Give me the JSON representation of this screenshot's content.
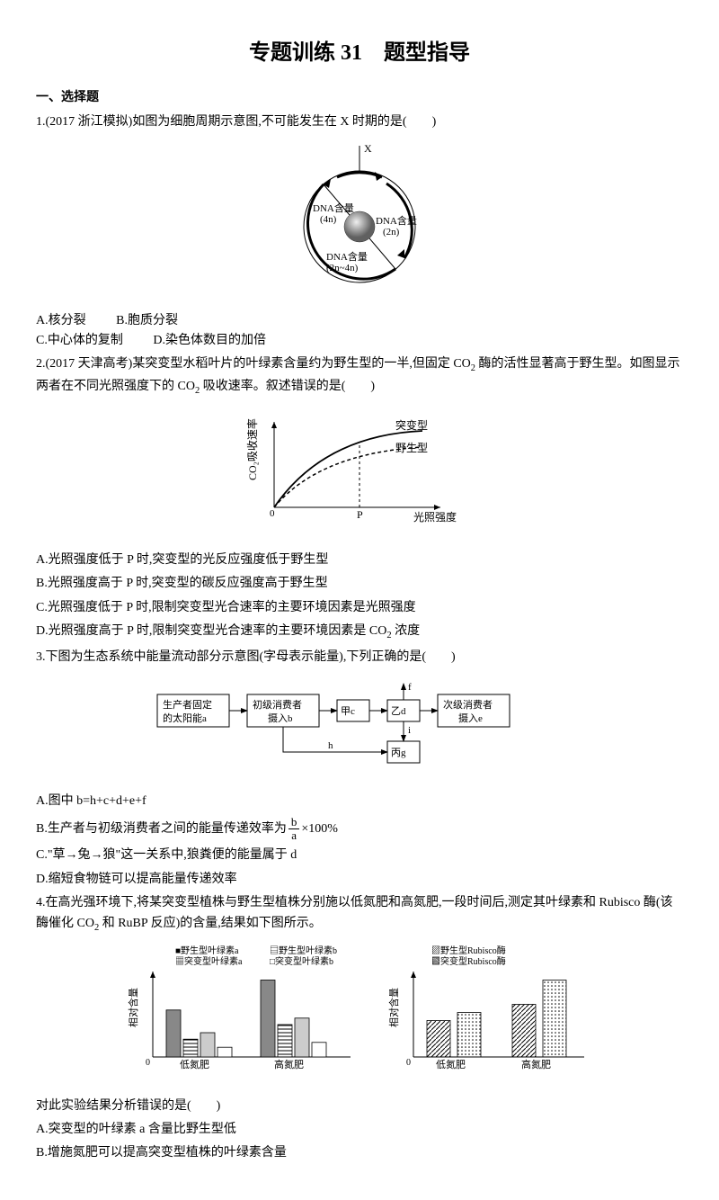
{
  "title": "专题训练 31　题型指导",
  "section1": "一、选择题",
  "q1": {
    "stem": "1.(2017 浙江模拟)如图为细胞周期示意图,不可能发生在 X 时期的是(　　)",
    "fig": {
      "x_label": "X",
      "ring_left": "DNA含量\n(4n)",
      "ring_bottom": "DNA含量\n(2n~4n)",
      "ring_right": "DNA含量\n(2n)",
      "stroke": "#000000",
      "fill_sphere_dark": "#7a7a7a",
      "fill_sphere_light": "#e8e8e8"
    },
    "optA": "A.核分裂",
    "optB": "B.胞质分裂",
    "optC": "C.中心体的复制",
    "optD": "D.染色体数目的加倍"
  },
  "q2": {
    "stem1": "2.(2017 天津高考)某突变型水稻叶片的叶绿素含量约为野生型的一半,但固定 CO",
    "stem_sub": "2",
    "stem2": " 酶的活性显著高于野生型。如图显示两者在不同光照强度下的 CO",
    "stem3": " 吸收速率。叙述错误的是(　　)",
    "fig": {
      "ylabel": "CO₂吸收速率",
      "xlabel": "光照强度",
      "tickP": "P",
      "tick0": "0",
      "series_mut": "突变型",
      "series_wt": "野生型",
      "color": "#000000",
      "mut_style": "solid",
      "wt_style": "dashed"
    },
    "optA": "A.光照强度低于 P 时,突变型的光反应强度低于野生型",
    "optB": "B.光照强度高于 P 时,突变型的碳反应强度高于野生型",
    "optC": "C.光照强度低于 P 时,限制突变型光合速率的主要环境因素是光照强度",
    "optD": "D.光照强度高于 P 时,限制突变型光合速率的主要环境因素是 CO",
    "optD_sub": "2",
    "optD_tail": " 浓度"
  },
  "q3": {
    "stem": "3.下图为生态系统中能量流动部分示意图(字母表示能量),下列正确的是(　　)",
    "fig": {
      "box1": "生产者固定\n的太阳能a",
      "box2": "初级消费者\n摄入b",
      "box3a": "甲",
      "box3b": "c",
      "box4a": "乙",
      "box4b": "d",
      "box5": "次级消费者\n摄入e",
      "box6a": "丙",
      "box6b": "g",
      "edge_h": "h",
      "edge_i": "i",
      "edge_f": "f",
      "stroke": "#000000"
    },
    "optA": "A.图中 b=h+c+d+e+f",
    "optB_pre": "B.生产者与初级消费者之间的能量传递效率为",
    "optB_frac_num": "b",
    "optB_frac_den": "a",
    "optB_tail": "×100%",
    "optC": "C.\"草→兔→狼\"这一关系中,狼粪便的能量属于 d",
    "optD": "D.缩短食物链可以提高能量传递效率"
  },
  "q4": {
    "stem1": "4.在高光强环境下,将某突变型植株与野生型植株分别施以低氮肥和高氮肥,一段时间后,测定其叶绿素和 Rubisco 酶(该酶催化 CO",
    "stem_sub": "2",
    "stem2": " 和 RuBP 反应)的含量,结果如下图所示。",
    "fig": {
      "ylabel": "相对含量",
      "tick0": "0",
      "xlow": "低氮肥",
      "xhigh": "高氮肥",
      "legA": "野生型叶绿素a",
      "legB": "野生型叶绿素b",
      "legC": "突变型叶绿素a",
      "legD": "突变型叶绿素b",
      "legE": "野生型Rubisco酶",
      "legF": "突变型Rubisco酶",
      "chart1": {
        "low": {
          "wt_a": 0.58,
          "wt_b": 0.22,
          "mut_a": 0.3,
          "mut_b": 0.12
        },
        "high": {
          "wt_a": 0.95,
          "wt_b": 0.4,
          "mut_a": 0.48,
          "mut_b": 0.18
        }
      },
      "chart2": {
        "low": {
          "wt": 0.45,
          "mut": 0.55
        },
        "high": {
          "wt": 0.65,
          "mut": 0.95
        }
      },
      "fill_wta": "#888888",
      "fill_wtb": "pattern-horiz",
      "fill_muta": "#cccccc",
      "fill_mutb": "#ffffff",
      "fill_wtR": "pattern-diag1",
      "fill_mutR": "pattern-dots"
    },
    "concl": "对此实验结果分析错误的是(　　)",
    "optA": "A.突变型的叶绿素 a 含量比野生型低",
    "optB": "B.增施氮肥可以提高突变型植株的叶绿素含量"
  }
}
